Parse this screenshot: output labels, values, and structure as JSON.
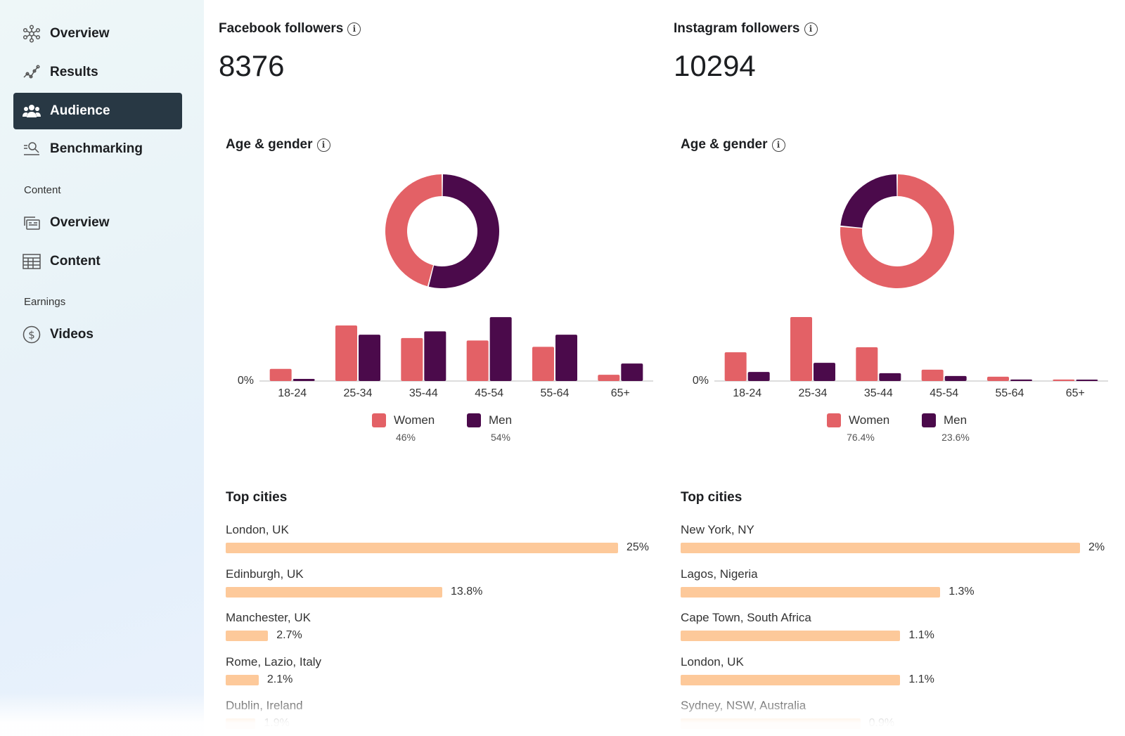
{
  "sidebar": {
    "items": [
      {
        "label": "Overview",
        "icon": "network-icon",
        "active": false
      },
      {
        "label": "Results",
        "icon": "trend-line-icon",
        "active": false
      },
      {
        "label": "Audience",
        "icon": "people-icon",
        "active": true
      },
      {
        "label": "Benchmarking",
        "icon": "search-list-icon",
        "active": false
      }
    ],
    "content_section": "Content",
    "content_items": [
      {
        "label": "Overview",
        "icon": "cards-icon"
      },
      {
        "label": "Content",
        "icon": "table-icon"
      }
    ],
    "earnings_section": "Earnings",
    "earnings_items": [
      {
        "label": "Videos",
        "icon": "dollar-icon"
      }
    ]
  },
  "colors": {
    "women": "#e36166",
    "men": "#4b0a4b",
    "city_bar": "#fdc99a",
    "active_nav": "#283844"
  },
  "columns": [
    {
      "followers_label": "Facebook followers",
      "followers_value": "8376",
      "age_gender_title": "Age & gender",
      "zero_label": "0%",
      "legend": [
        {
          "name": "Women",
          "pct": "46%"
        },
        {
          "name": "Men",
          "pct": "54%"
        }
      ],
      "top_cities_title": "Top cities",
      "cities": [
        {
          "name": "London, UK",
          "value": "25%",
          "v": 25
        },
        {
          "name": "Edinburgh, UK",
          "value": "13.8%",
          "v": 13.8
        },
        {
          "name": "Manchester, UK",
          "value": "2.7%",
          "v": 2.7
        },
        {
          "name": "Rome, Lazio, Italy",
          "value": "2.1%",
          "v": 2.1
        },
        {
          "name": "Dublin, Ireland",
          "value": "1.9%",
          "v": 1.9
        }
      ]
    },
    {
      "followers_label": "Instagram followers",
      "followers_value": "10294",
      "age_gender_title": "Age & gender",
      "zero_label": "0%",
      "legend": [
        {
          "name": "Women",
          "pct": "76.4%"
        },
        {
          "name": "Men",
          "pct": "23.6%"
        }
      ],
      "top_cities_title": "Top cities",
      "cities": [
        {
          "name": "New York, NY",
          "value": "2%",
          "v": 2
        },
        {
          "name": "Lagos, Nigeria",
          "value": "1.3%",
          "v": 1.3
        },
        {
          "name": "Cape Town, South Africa",
          "value": "1.1%",
          "v": 1.1
        },
        {
          "name": "London, UK",
          "value": "1.1%",
          "v": 1.1
        },
        {
          "name": "Sydney, NSW, Australia",
          "value": "0.9%",
          "v": 0.9
        }
      ]
    }
  ],
  "chart_data": [
    {
      "type": "pie",
      "categories": [
        "Women",
        "Men"
      ],
      "values": [
        46,
        54
      ]
    },
    {
      "type": "bar",
      "categories": [
        "18-24",
        "25-34",
        "35-44",
        "45-54",
        "55-64",
        "65+"
      ],
      "series": [
        {
          "name": "Women",
          "values": [
            2.9,
            13.3,
            10.3,
            9.7,
            8.2,
            1.5
          ]
        },
        {
          "name": "Men",
          "values": [
            0.5,
            11.1,
            11.9,
            15.3,
            11.1,
            4.2
          ]
        }
      ],
      "ylim": [
        0,
        16
      ],
      "ytick_labels": [
        "0%"
      ]
    },
    {
      "type": "pie",
      "categories": [
        "Women",
        "Men"
      ],
      "values": [
        76.4,
        23.6
      ]
    },
    {
      "type": "bar",
      "categories": [
        "18-24",
        "25-34",
        "35-44",
        "45-54",
        "55-64",
        "65+"
      ],
      "series": [
        {
          "name": "Women",
          "values": [
            15.5,
            34.5,
            18.2,
            6.1,
            2.3,
            0.8
          ]
        },
        {
          "name": "Men",
          "values": [
            4.9,
            9.8,
            4.2,
            2.7,
            0.8,
            0.4
          ]
        }
      ],
      "ylim": [
        0,
        36
      ],
      "ytick_labels": [
        "0%"
      ]
    }
  ]
}
